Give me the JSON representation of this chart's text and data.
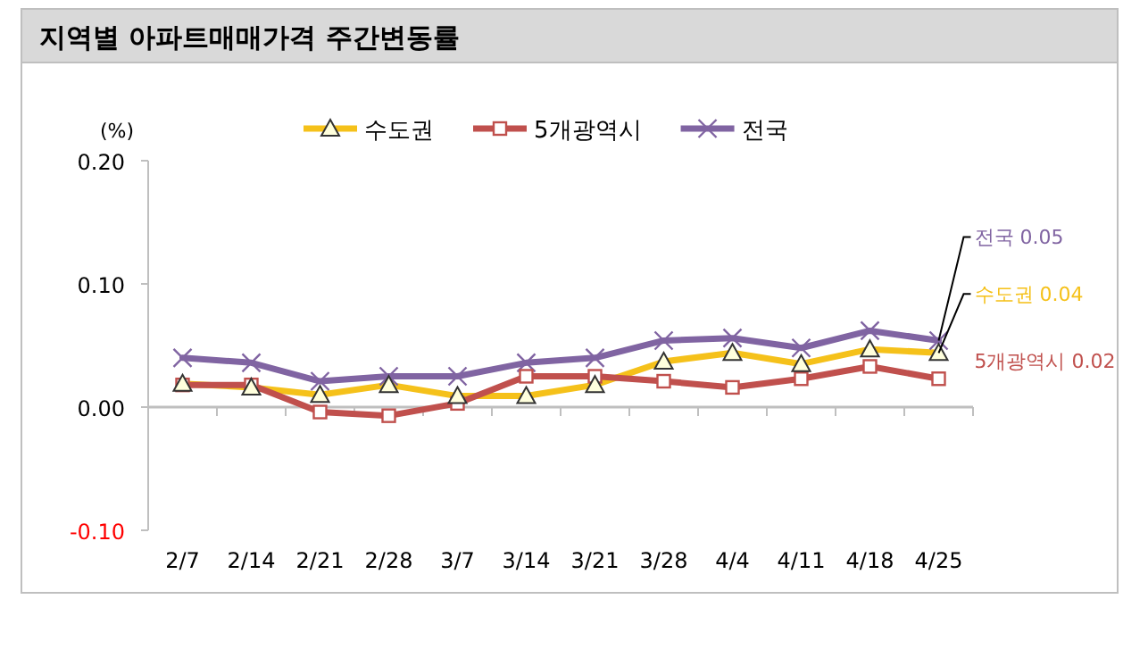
{
  "chart_data": {
    "type": "line",
    "title": "지역별 아파트매매가격 주간변동률",
    "ylabel": "(%)",
    "categories": [
      "2/7",
      "2/14",
      "2/21",
      "2/28",
      "3/7",
      "3/14",
      "3/21",
      "3/28",
      "4/4",
      "4/11",
      "4/18",
      "4/25"
    ],
    "series": [
      {
        "name": "수도권",
        "color": "#f5c11a",
        "marker": "triangle",
        "values": [
          0.019,
          0.016,
          0.01,
          0.018,
          0.009,
          0.009,
          0.018,
          0.037,
          0.044,
          0.035,
          0.047,
          0.044
        ]
      },
      {
        "name": "5개광역시",
        "color": "#c0504d",
        "marker": "square",
        "values": [
          0.018,
          0.018,
          -0.004,
          -0.007,
          0.003,
          0.025,
          0.025,
          0.021,
          0.016,
          0.023,
          0.033,
          0.023
        ]
      },
      {
        "name": "전국",
        "color": "#8064a2",
        "marker": "cross",
        "values": [
          0.04,
          0.036,
          0.021,
          0.025,
          0.025,
          0.036,
          0.04,
          0.054,
          0.056,
          0.048,
          0.062,
          0.054
        ]
      }
    ],
    "ylim": [
      -0.1,
      0.2
    ],
    "yticks": [
      {
        "value": -0.1,
        "label": "-0.10"
      },
      {
        "value": 0,
        "label": "0.00"
      },
      {
        "value": 0.1,
        "label": "0.10"
      },
      {
        "value": 0.2,
        "label": "0.20"
      }
    ],
    "legend": "top",
    "annotations": [
      {
        "text": "전국 0.05",
        "x": "4/25",
        "y": 0.054
      },
      {
        "text": "수도권 0.04",
        "x": "4/25",
        "y": 0.044
      },
      {
        "text": "5개광역시 0.02",
        "x": "4/25",
        "y": 0.023
      }
    ]
  }
}
